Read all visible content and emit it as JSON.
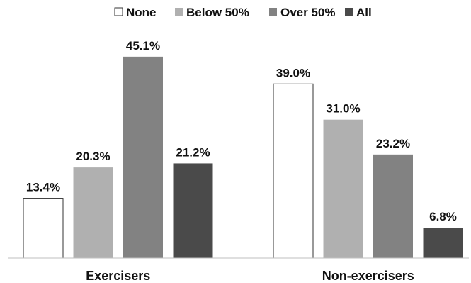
{
  "chart_data": {
    "type": "bar",
    "categories": [
      "Exercisers",
      "Non-exercisers"
    ],
    "series": [
      {
        "name": "None",
        "values": [
          13.4,
          39.0
        ],
        "color": "#ffffff"
      },
      {
        "name": "Below 50%",
        "values": [
          20.3,
          31.0
        ],
        "color": "#b0b0b0"
      },
      {
        "name": "Over 50%",
        "values": [
          45.1,
          23.2
        ],
        "color": "#828282"
      },
      {
        "name": "All",
        "values": [
          21.2,
          6.8
        ],
        "color": "#4a4a4a"
      }
    ],
    "value_suffix": "%",
    "legend_position": "top",
    "grid": false,
    "ylim": [
      0,
      50
    ]
  }
}
